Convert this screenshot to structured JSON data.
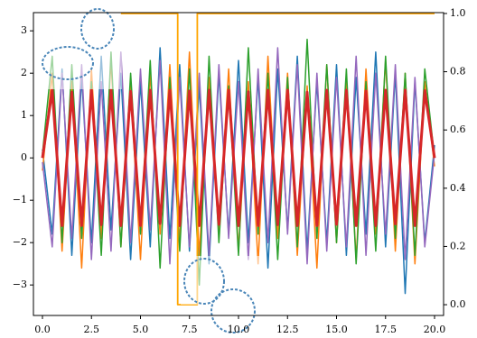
{
  "chart_data": {
    "type": "line",
    "x": [
      0,
      0.5,
      1,
      1.5,
      2,
      2.5,
      3,
      3.5,
      4,
      4.5,
      5,
      5.5,
      6,
      6.5,
      7,
      7.5,
      8,
      8.5,
      9,
      9.5,
      10,
      10.5,
      11,
      11.5,
      12,
      12.5,
      13,
      13.5,
      14,
      14.5,
      15,
      15.5,
      16,
      16.5,
      17,
      17.5,
      18,
      18.5,
      19,
      19.5,
      20
    ],
    "series": [
      {
        "color": "#1f77b4",
        "values": [
          0.2,
          -1.8,
          2.1,
          -2.3,
          1.9,
          -2.0,
          2.4,
          -1.7,
          2.0,
          -2.4,
          1.8,
          -2.1,
          2.6,
          -1.9,
          2.2,
          -2.2,
          1.7,
          -2.5,
          2.0,
          -1.8,
          2.3,
          -2.0,
          1.9,
          -2.6,
          2.1,
          -1.7,
          2.4,
          -2.2,
          1.8,
          -2.0,
          2.2,
          -2.3,
          1.9,
          -1.8,
          2.5,
          -2.1,
          2.0,
          -3.2,
          1.8,
          -2.0,
          0.3
        ]
      },
      {
        "color": "#ff7f0e",
        "values": [
          -0.3,
          2.0,
          -2.2,
          1.8,
          -2.6,
          2.1,
          -1.9,
          2.3,
          -2.1,
          1.7,
          -2.4,
          2.0,
          -1.8,
          2.2,
          -2.0,
          2.5,
          -2.3,
          1.9,
          -1.7,
          2.1,
          -2.2,
          1.8,
          -2.5,
          2.4,
          -1.9,
          2.0,
          -2.3,
          1.7,
          -2.6,
          2.2,
          -2.0,
          1.9,
          -2.4,
          2.1,
          -1.8,
          2.3,
          -2.2,
          2.0,
          -2.5,
          1.8,
          -0.2
        ]
      },
      {
        "color": "#2ca02c",
        "values": [
          0.1,
          2.4,
          -2.0,
          2.2,
          -1.9,
          1.8,
          -2.3,
          2.5,
          -2.1,
          2.0,
          -1.8,
          2.3,
          -2.6,
          1.9,
          -2.2,
          2.1,
          -3.0,
          2.4,
          -2.0,
          1.7,
          -2.3,
          2.6,
          -1.8,
          2.0,
          -2.4,
          1.9,
          -2.1,
          2.8,
          -1.9,
          2.2,
          -2.0,
          2.1,
          -2.5,
          1.8,
          -2.2,
          2.4,
          -1.9,
          2.0,
          -2.3,
          2.1,
          0.0
        ]
      },
      {
        "color": "#9467bd",
        "values": [
          -0.1,
          -2.1,
          2.0,
          -1.9,
          2.2,
          -2.4,
          1.8,
          -2.2,
          2.5,
          -2.0,
          2.1,
          -1.7,
          2.3,
          -2.5,
          1.9,
          -2.1,
          2.0,
          -2.3,
          2.2,
          -1.9,
          1.8,
          -2.4,
          2.1,
          -2.0,
          2.6,
          -1.8,
          2.2,
          -2.5,
          2.0,
          -2.2,
          1.9,
          -2.1,
          2.4,
          -2.3,
          2.0,
          -1.8,
          2.2,
          -2.4,
          1.9,
          -2.1,
          0.1
        ]
      },
      {
        "color": "#d62728",
        "values": [
          0.0,
          1.6,
          -1.6,
          1.55,
          -1.6,
          1.6,
          -1.58,
          1.6,
          -1.6,
          1.57,
          -1.6,
          1.6,
          -1.55,
          1.6,
          -1.6,
          1.58,
          -1.6,
          1.6,
          -1.57,
          1.6,
          -1.6,
          1.56,
          -1.6,
          1.6,
          -1.58,
          1.6,
          -1.6,
          1.55,
          -1.6,
          1.6,
          -1.57,
          1.6,
          -1.6,
          1.58,
          -1.6,
          1.6,
          -1.56,
          1.6,
          -1.6,
          1.59,
          0.0
        ]
      },
      {
        "color": "#ffa500",
        "axis": "y2",
        "x": [
          4,
          6.9,
          6.9,
          7.9,
          7.9,
          20
        ],
        "values": [
          1,
          1,
          0,
          0,
          1,
          1
        ]
      }
    ],
    "xlim": [
      -0.46,
      20.46
    ],
    "xticks": [
      {
        "value": 0,
        "label": "0.0"
      },
      {
        "value": 2.5,
        "label": "2.5"
      },
      {
        "value": 5,
        "label": "5.0"
      },
      {
        "value": 7.5,
        "label": "7.5"
      },
      {
        "value": 10,
        "label": "10.0"
      },
      {
        "value": 12.5,
        "label": "12.5"
      },
      {
        "value": 15,
        "label": "15.0"
      },
      {
        "value": 17.5,
        "label": "17.5"
      },
      {
        "value": 20,
        "label": "20.0"
      }
    ],
    "ylim": [
      -3.72,
      3.43
    ],
    "yticks": [
      {
        "value": -3,
        "label": "−3"
      },
      {
        "value": -2,
        "label": "−2"
      },
      {
        "value": -1,
        "label": "−1"
      },
      0,
      1,
      2,
      3
    ],
    "y2lim": [
      -0.037,
      1.003
    ],
    "y2ticks": [
      {
        "value": 0,
        "label": "0.0"
      },
      {
        "value": 0.2,
        "label": "0.2"
      },
      {
        "value": 0.4,
        "label": "0.4"
      },
      {
        "value": 0.6,
        "label": "0.6"
      },
      {
        "value": 0.8,
        "label": "0.8"
      },
      {
        "value": 1,
        "label": "1.0"
      }
    ]
  }
}
